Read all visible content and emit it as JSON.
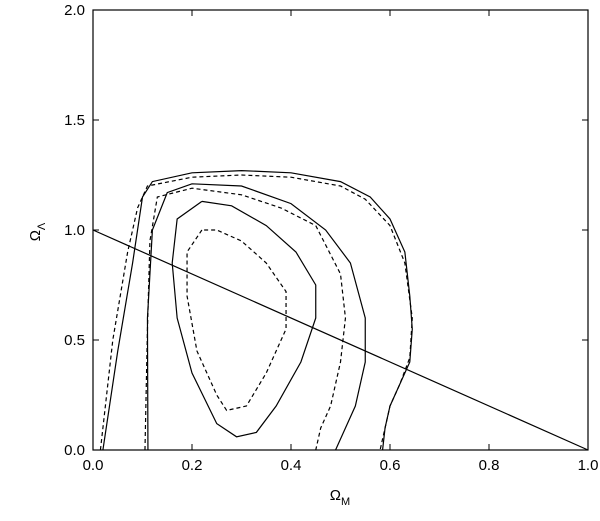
{
  "chart_data": {
    "type": "line",
    "xlabel": "Ω",
    "xlabel_sub": "M",
    "ylabel": "Ω",
    "ylabel_sub": "Λ",
    "xlim": [
      0,
      1
    ],
    "ylim": [
      0,
      2
    ],
    "xticks": [
      {
        "value": 0,
        "label": "0.0"
      },
      0.2,
      0.4,
      0.6,
      0.8,
      {
        "value": 1,
        "label": "1.0"
      }
    ],
    "yticks": [
      {
        "value": 0,
        "label": "0.0"
      },
      0.5,
      {
        "value": 1,
        "label": "1.0"
      },
      1.5,
      {
        "value": 2,
        "label": "2.0"
      }
    ],
    "series": [
      {
        "color": "#000",
        "dashed": false,
        "x": [
          0,
          1
        ],
        "values": [
          1,
          0
        ]
      },
      {
        "color": "#000",
        "dashed": false,
        "x": [
          0.02,
          0.05,
          0.08,
          0.1,
          0.12,
          0.2,
          0.3,
          0.4,
          0.5,
          0.56,
          0.6,
          0.63,
          0.64,
          0.645,
          0.64,
          0.62,
          0.6,
          0.59,
          0.585
        ],
        "values": [
          0,
          0.45,
          0.85,
          1.15,
          1.22,
          1.26,
          1.27,
          1.26,
          1.22,
          1.15,
          1.05,
          0.9,
          0.7,
          0.55,
          0.4,
          0.3,
          0.2,
          0.1,
          0
        ]
      },
      {
        "color": "#000",
        "dashed": true,
        "x": [
          0.015,
          0.04,
          0.07,
          0.09,
          0.11,
          0.2,
          0.3,
          0.4,
          0.5,
          0.55,
          0.6,
          0.63,
          0.645,
          0.64,
          0.62,
          0.6,
          0.59,
          0.58
        ],
        "values": [
          0,
          0.5,
          0.9,
          1.1,
          1.2,
          1.24,
          1.25,
          1.24,
          1.2,
          1.14,
          1.02,
          0.85,
          0.6,
          0.42,
          0.3,
          0.2,
          0.1,
          0
        ]
      },
      {
        "color": "#000",
        "dashed": false,
        "x": [
          0.111,
          0.11,
          0.12,
          0.15,
          0.2,
          0.3,
          0.4,
          0.47,
          0.52,
          0.55,
          0.55,
          0.53,
          0.51,
          0.49
        ],
        "values": [
          0,
          0.6,
          1.0,
          1.17,
          1.21,
          1.2,
          1.12,
          1.0,
          0.85,
          0.6,
          0.4,
          0.2,
          0.1,
          0
        ]
      },
      {
        "color": "#000",
        "dashed": true,
        "x": [
          0.105,
          0.11,
          0.115,
          0.13,
          0.2,
          0.3,
          0.38,
          0.45,
          0.5,
          0.51,
          0.5,
          0.48,
          0.46,
          0.45
        ],
        "values": [
          0,
          0.55,
          0.95,
          1.15,
          1.19,
          1.16,
          1.1,
          1.02,
          0.8,
          0.6,
          0.4,
          0.2,
          0.1,
          0
        ]
      },
      {
        "color": "#000",
        "dashed": false,
        "x": [
          0.22,
          0.17,
          0.16,
          0.17,
          0.2,
          0.25,
          0.29,
          0.33,
          0.37,
          0.42,
          0.45,
          0.45,
          0.41,
          0.35,
          0.28,
          0.22
        ],
        "values": [
          1.13,
          1.05,
          0.85,
          0.6,
          0.35,
          0.12,
          0.06,
          0.08,
          0.2,
          0.4,
          0.6,
          0.75,
          0.9,
          1.02,
          1.11,
          1.13
        ]
      },
      {
        "color": "#000",
        "dashed": true,
        "x": [
          0.22,
          0.19,
          0.19,
          0.21,
          0.25,
          0.27,
          0.31,
          0.35,
          0.39,
          0.39,
          0.35,
          0.3,
          0.25,
          0.22
        ],
        "values": [
          1.0,
          0.9,
          0.7,
          0.45,
          0.25,
          0.18,
          0.2,
          0.35,
          0.55,
          0.72,
          0.85,
          0.95,
          1.0,
          1.0
        ]
      }
    ]
  }
}
